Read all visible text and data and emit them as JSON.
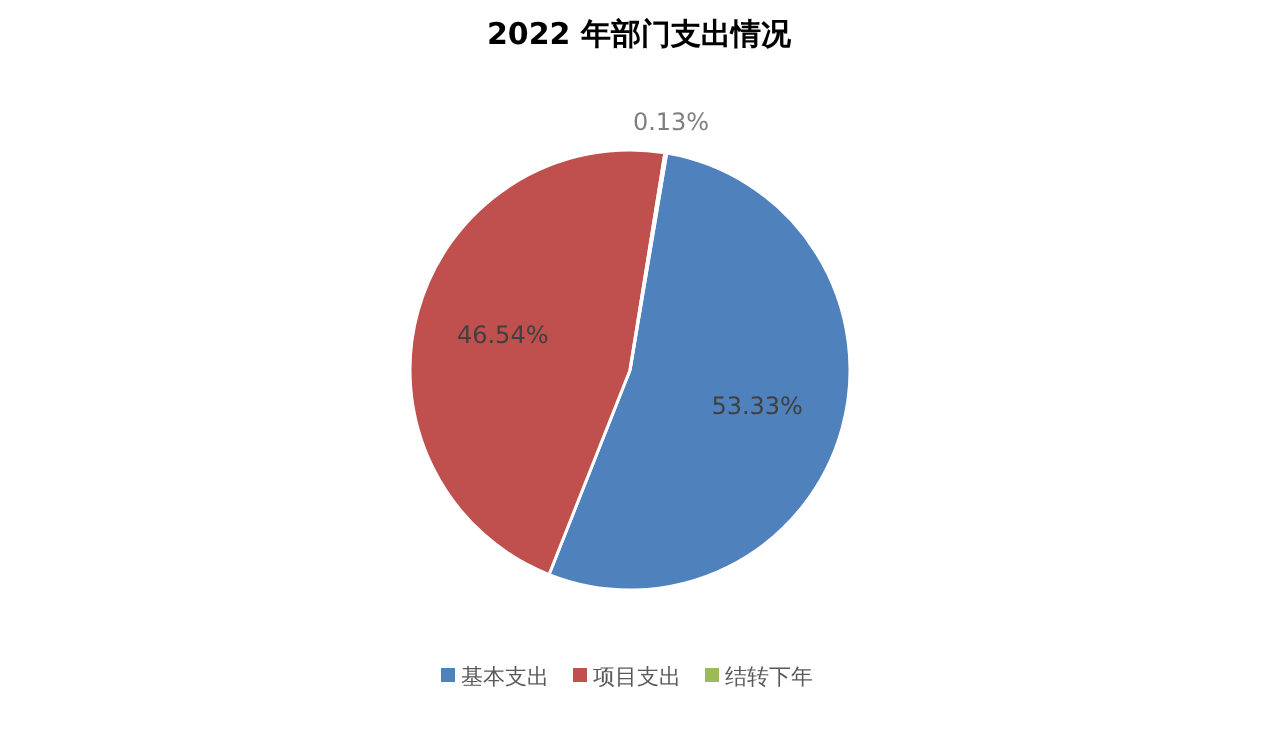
{
  "chart_data": {
    "type": "pie",
    "title": "2022 年部门支出情况",
    "categories": [
      "基本支出",
      "项目支出",
      "结转下年"
    ],
    "values": [
      53.33,
      46.54,
      0.13
    ],
    "colors": [
      "#4f81bd",
      "#c0504d",
      "#9bbb59"
    ],
    "value_labels": [
      "53.33%",
      "46.54%",
      "0.13%"
    ],
    "legend": "bottom"
  }
}
